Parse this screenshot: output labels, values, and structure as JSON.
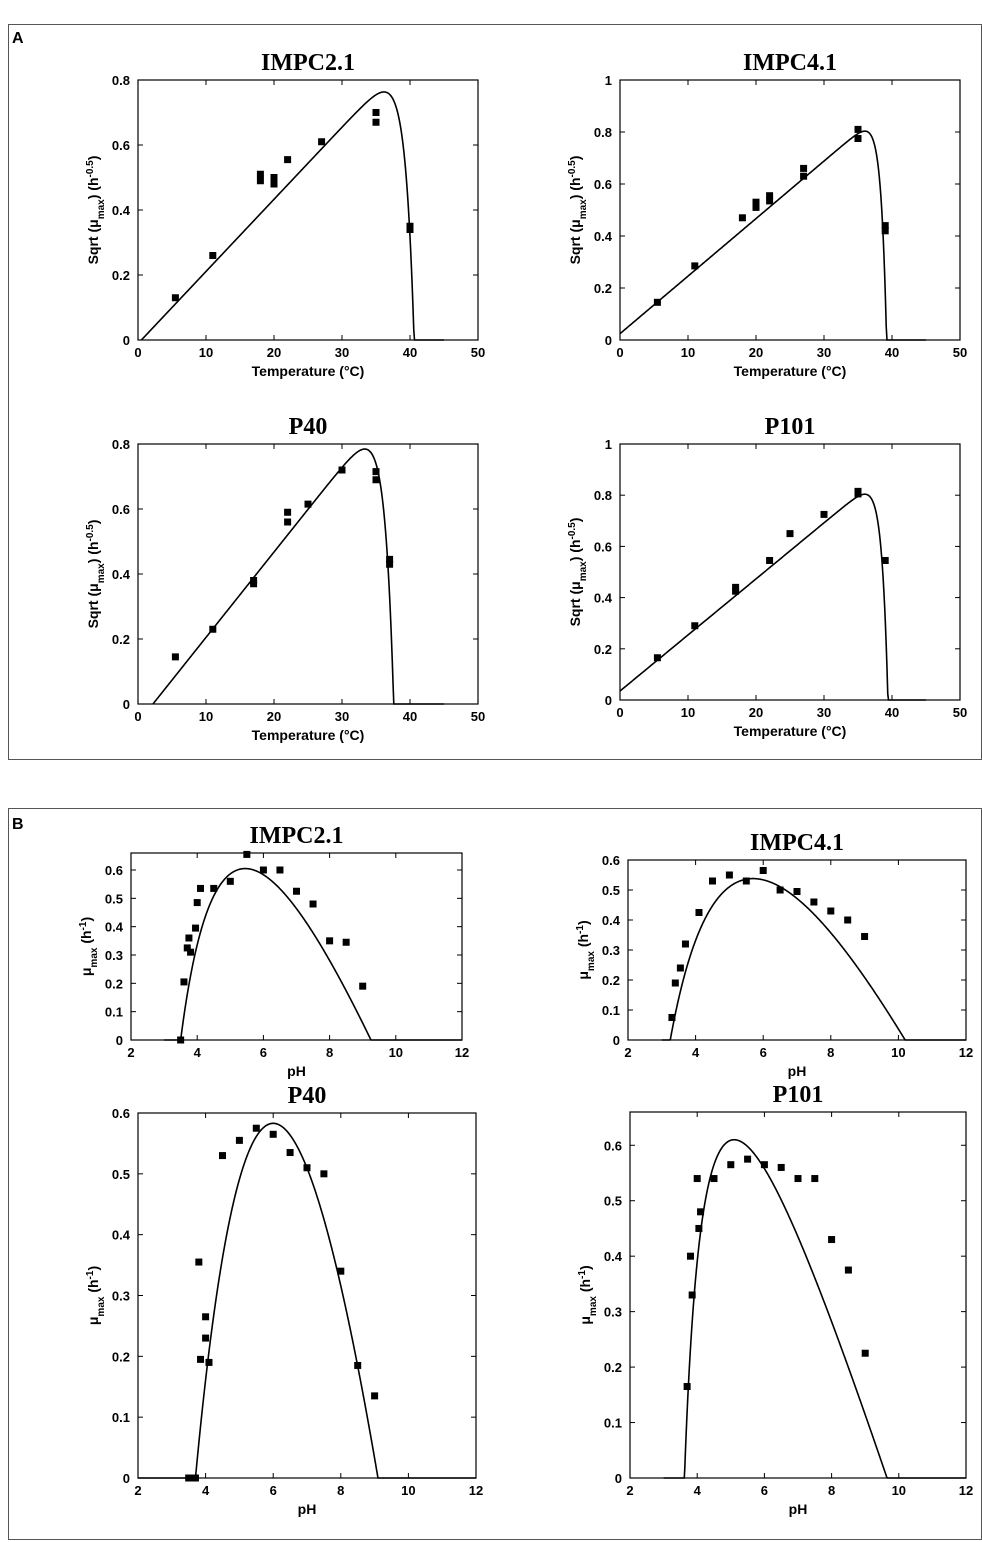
{
  "panels": [
    {
      "label": "A"
    },
    {
      "label": "B"
    }
  ],
  "chart_data": [
    {
      "type": "scatter",
      "panel": "A",
      "title": "IMPC2.1",
      "xlabel": "Temperature (°C)",
      "ylabel": "Sqrt (μ_max) (h^-0.5)",
      "xlim": [
        0,
        50
      ],
      "ylim": [
        0,
        0.8
      ],
      "xticks": [
        0,
        10,
        20,
        30,
        40,
        50
      ],
      "yticks": [
        0,
        0.2,
        0.4,
        0.6,
        0.8
      ],
      "series": [
        {
          "kind": "points",
          "x": [
            5.5,
            11,
            18,
            18,
            20,
            20,
            22,
            27,
            35,
            35,
            40,
            40
          ],
          "y": [
            0.13,
            0.26,
            0.49,
            0.51,
            0.48,
            0.5,
            0.555,
            0.61,
            0.67,
            0.7,
            0.34,
            0.35
          ]
        },
        {
          "kind": "model",
          "model": "ratkowsky_temperature",
          "params": {
            "b": 0.0222,
            "tmin": 0.5,
            "tmax": 40.6,
            "c": 0.75
          }
        }
      ]
    },
    {
      "type": "scatter",
      "panel": "A",
      "title": "IMPC4.1",
      "xlabel": "Temperature (°C)",
      "ylabel": "Sqrt (μ_max) (h^-0.5)",
      "xlim": [
        0,
        50
      ],
      "ylim": [
        0,
        1
      ],
      "xticks": [
        0,
        10,
        20,
        30,
        40,
        50
      ],
      "yticks": [
        0,
        0.2,
        0.4,
        0.6,
        0.8,
        1
      ],
      "series": [
        {
          "kind": "points",
          "x": [
            5.5,
            11,
            18,
            20,
            20,
            22,
            22,
            27,
            27,
            35,
            35,
            39,
            39
          ],
          "y": [
            0.145,
            0.285,
            0.47,
            0.51,
            0.53,
            0.535,
            0.555,
            0.63,
            0.66,
            0.775,
            0.81,
            0.42,
            0.44
          ]
        },
        {
          "kind": "model",
          "model": "ratkowsky_temperature",
          "params": {
            "b": 0.02213,
            "tmin": -1.1,
            "tmax": 39.2,
            "c": 1.2
          }
        }
      ]
    },
    {
      "type": "scatter",
      "panel": "A",
      "title": "P40",
      "xlabel": "Temperature (°C)",
      "ylabel": "Sqrt (μ_max) (h^-0.5)",
      "xlim": [
        0,
        50
      ],
      "ylim": [
        0,
        0.8
      ],
      "xticks": [
        0,
        10,
        20,
        30,
        40,
        50
      ],
      "yticks": [
        0,
        0.2,
        0.4,
        0.6,
        0.8
      ],
      "series": [
        {
          "kind": "points",
          "x": [
            5.5,
            11,
            17,
            17,
            22,
            22,
            25,
            30,
            35,
            35,
            37,
            37
          ],
          "y": [
            0.145,
            0.23,
            0.37,
            0.38,
            0.56,
            0.59,
            0.615,
            0.72,
            0.69,
            0.715,
            0.43,
            0.445
          ]
        },
        {
          "kind": "model",
          "model": "ratkowsky_temperature",
          "params": {
            "b": 0.02627,
            "tmin": 2.2,
            "tmax": 37.6,
            "c": 0.75
          }
        }
      ]
    },
    {
      "type": "scatter",
      "panel": "A",
      "title": "P101",
      "xlabel": "Temperature (°C)",
      "ylabel": "Sqrt (μ_max) (h^-0.5)",
      "xlim": [
        0,
        50
      ],
      "ylim": [
        0,
        1
      ],
      "xticks": [
        0,
        10,
        20,
        30,
        40,
        50
      ],
      "yticks": [
        0,
        0.2,
        0.4,
        0.6,
        0.8,
        1
      ],
      "series": [
        {
          "kind": "points",
          "x": [
            5.5,
            11,
            17,
            17,
            22,
            25,
            30,
            35,
            35,
            39
          ],
          "y": [
            0.165,
            0.29,
            0.425,
            0.44,
            0.545,
            0.65,
            0.725,
            0.805,
            0.815,
            0.545
          ]
        },
        {
          "kind": "model",
          "model": "ratkowsky_temperature",
          "params": {
            "b": 0.0219,
            "tmin": -1.6,
            "tmax": 39.4,
            "c": 1.1
          }
        }
      ]
    },
    {
      "type": "scatter",
      "panel": "B",
      "title": "IMPC2.1",
      "xlabel": "pH",
      "ylabel": "μ_max (h^-1)",
      "xlim": [
        2,
        12
      ],
      "ylim": [
        0,
        0.66
      ],
      "xticks": [
        2,
        4,
        6,
        8,
        10,
        12
      ],
      "yticks": [
        0,
        0.1,
        0.2,
        0.3,
        0.4,
        0.5,
        0.6
      ],
      "series": [
        {
          "kind": "points",
          "x": [
            3.5,
            3.6,
            3.7,
            3.75,
            3.8,
            3.95,
            4.0,
            4.1,
            4.5,
            5.0,
            5.5,
            6.0,
            6.5,
            7.0,
            7.5,
            8.0,
            8.5,
            9.0
          ],
          "y": [
            0.0,
            0.205,
            0.325,
            0.36,
            0.31,
            0.395,
            0.485,
            0.535,
            0.535,
            0.56,
            0.655,
            0.6,
            0.6,
            0.525,
            0.48,
            0.35,
            0.345,
            0.19
          ]
        },
        {
          "kind": "model",
          "model": "cardinal_ph",
          "params": {
            "mu": 0.605,
            "phmin": 3.5,
            "phopt": 5.45,
            "phmax": 9.25,
            "xstart": 3.0
          }
        }
      ]
    },
    {
      "type": "scatter",
      "panel": "B",
      "title": "IMPC4.1",
      "xlabel": "pH",
      "ylabel": "μ_max (h^-1)",
      "xlim": [
        2,
        12
      ],
      "ylim": [
        0,
        0.6
      ],
      "xticks": [
        2,
        4,
        6,
        8,
        10,
        12
      ],
      "yticks": [
        0,
        0.1,
        0.2,
        0.3,
        0.4,
        0.5,
        0.6
      ],
      "series": [
        {
          "kind": "points",
          "x": [
            3.3,
            3.4,
            3.55,
            3.7,
            4.1,
            4.5,
            5.0,
            5.5,
            6.0,
            6.5,
            7.0,
            7.5,
            8.0,
            8.5,
            9.0
          ],
          "y": [
            0.075,
            0.19,
            0.24,
            0.32,
            0.425,
            0.53,
            0.55,
            0.53,
            0.565,
            0.5,
            0.495,
            0.46,
            0.43,
            0.4,
            0.345
          ]
        },
        {
          "kind": "model",
          "model": "cardinal_ph",
          "params": {
            "mu": 0.538,
            "phmin": 3.25,
            "phopt": 5.7,
            "phmax": 10.2,
            "xstart": 3.0
          }
        }
      ]
    },
    {
      "type": "scatter",
      "panel": "B",
      "title": "P40",
      "xlabel": "pH",
      "ylabel": "μ_max (h^-1)",
      "xlim": [
        2,
        12
      ],
      "ylim": [
        0,
        0.6
      ],
      "xticks": [
        2,
        4,
        6,
        8,
        10,
        12
      ],
      "yticks": [
        0,
        0.1,
        0.2,
        0.3,
        0.4,
        0.5,
        0.6
      ],
      "series": [
        {
          "kind": "points",
          "x": [
            3.5,
            3.55,
            3.6,
            3.65,
            3.7,
            3.8,
            3.85,
            4.0,
            4.0,
            4.1,
            4.5,
            5.0,
            5.5,
            6.0,
            6.5,
            7.0,
            7.5,
            8.0,
            8.5,
            9.0
          ],
          "y": [
            0.0,
            0.0,
            0.0,
            0.0,
            0.0,
            0.355,
            0.195,
            0.265,
            0.23,
            0.19,
            0.53,
            0.555,
            0.575,
            0.565,
            0.535,
            0.51,
            0.5,
            0.34,
            0.185,
            0.135
          ]
        },
        {
          "kind": "model",
          "model": "cardinal_ph",
          "params": {
            "mu": 0.583,
            "phmin": 3.7,
            "phopt": 6.0,
            "phmax": 9.1,
            "xstart": 2.0
          }
        }
      ]
    },
    {
      "type": "scatter",
      "panel": "B",
      "title": "P101",
      "xlabel": "pH",
      "ylabel": "μ_max (h^-1)",
      "xlim": [
        2,
        12
      ],
      "ylim": [
        0,
        0.66
      ],
      "xticks": [
        2,
        4,
        6,
        8,
        10,
        12
      ],
      "yticks": [
        0,
        0.1,
        0.2,
        0.3,
        0.4,
        0.5,
        0.6
      ],
      "series": [
        {
          "kind": "points",
          "x": [
            3.7,
            3.8,
            3.85,
            4.0,
            4.05,
            4.1,
            4.5,
            5.0,
            5.5,
            6.0,
            6.5,
            7.0,
            7.5,
            8.0,
            8.5,
            9.0
          ],
          "y": [
            0.165,
            0.4,
            0.33,
            0.54,
            0.45,
            0.48,
            0.54,
            0.565,
            0.575,
            0.565,
            0.56,
            0.54,
            0.54,
            0.43,
            0.375,
            0.225
          ]
        },
        {
          "kind": "model",
          "model": "cardinal_ph",
          "params": {
            "mu": 0.61,
            "phmin": 3.62,
            "phopt": 5.1,
            "phmax": 9.65,
            "xstart": 3.0
          }
        }
      ]
    }
  ]
}
